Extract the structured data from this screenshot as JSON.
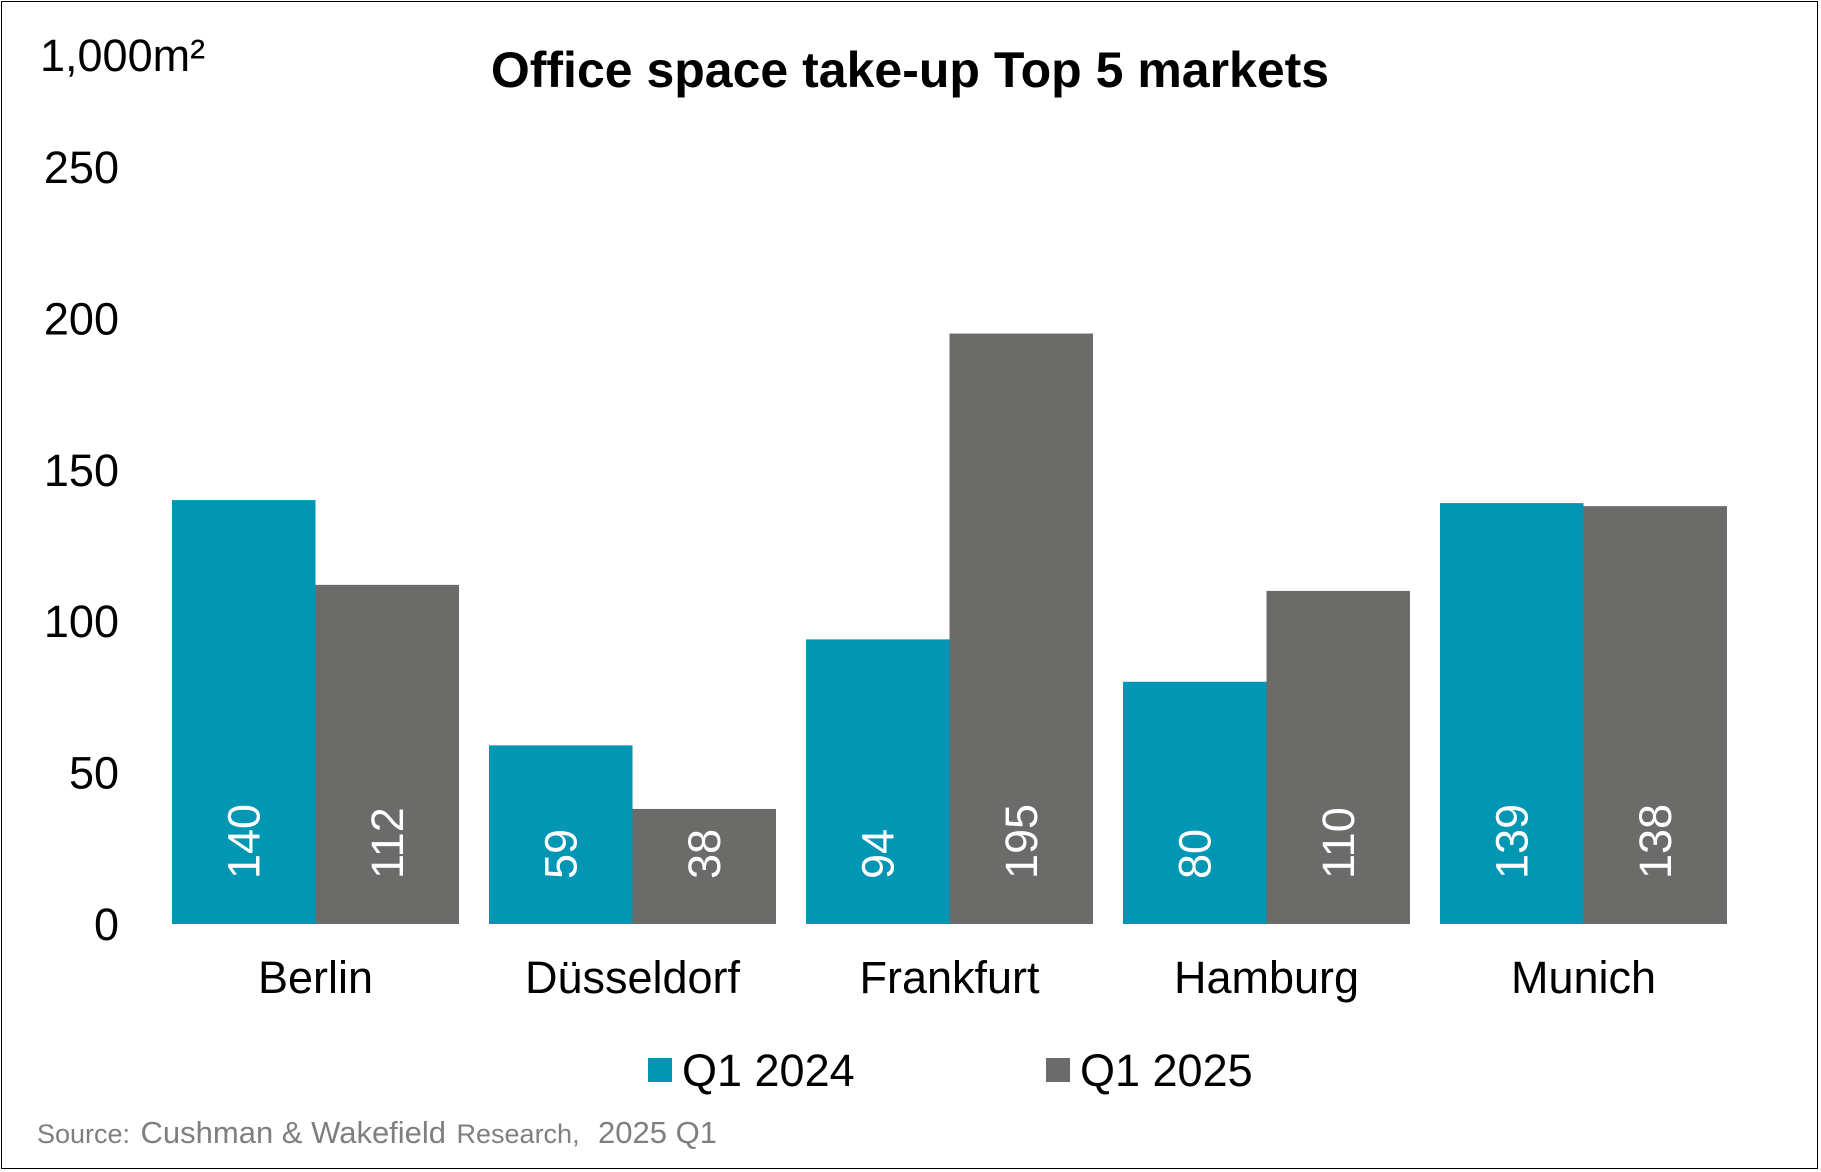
{
  "chart_data": {
    "type": "bar",
    "title": "Office space take-up Top 5 markets",
    "ylabel": "1,000m²",
    "xlabel": "",
    "categories": [
      "Berlin",
      "Düsseldorf",
      "Frankfurt",
      "Hamburg",
      "Munich"
    ],
    "series": [
      {
        "name": "Q1 2024",
        "color": "#0096b4",
        "values": [
          140,
          59,
          94,
          80,
          139
        ]
      },
      {
        "name": "Q1 2025",
        "color": "#6b6b6a",
        "values": [
          112,
          38,
          195,
          110,
          138
        ]
      }
    ],
    "ylim": [
      0,
      250
    ],
    "yticks": [
      "0",
      "50",
      "100",
      "150",
      "200",
      "250"
    ],
    "grid": false,
    "legend": "bottom-center",
    "data_labels": "inside-base-rotated"
  },
  "source": {
    "prefix": "Source:",
    "org": "Cushman & Wakefield",
    "suffix": "Research,",
    "date": "2025 Q1"
  }
}
